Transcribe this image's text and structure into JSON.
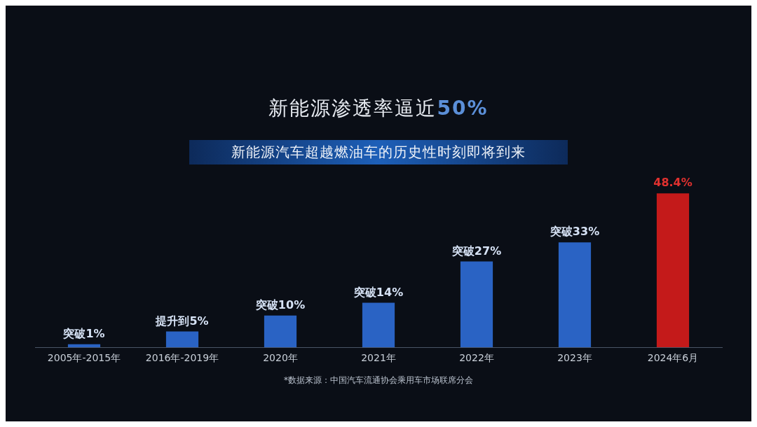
{
  "chart_data": {
    "type": "bar",
    "title": "新能源渗透率逼近50%",
    "subtitle": "新能源汽车超越燃油车的历史性时刻即将到来",
    "categories": [
      "2005年-2015年",
      "2016年-2019年",
      "2020年",
      "2021年",
      "2022年",
      "2023年",
      "2024年6月"
    ],
    "values": [
      1,
      5,
      10,
      14,
      27,
      33,
      48.4
    ],
    "colors": [
      "#2a63c4",
      "#2a63c4",
      "#2a63c4",
      "#2a63c4",
      "#2a63c4",
      "#2a63c4",
      "#c41a1a"
    ],
    "value_labels": [
      "突破1%",
      "提升到5%",
      "突破10%",
      "突破14%",
      "突破27%",
      "突破33%",
      "48.4%"
    ],
    "annotations": [
      "*数据来源：中国汽车流通协会乘用车市场联席分会"
    ],
    "legend": false
  }
}
